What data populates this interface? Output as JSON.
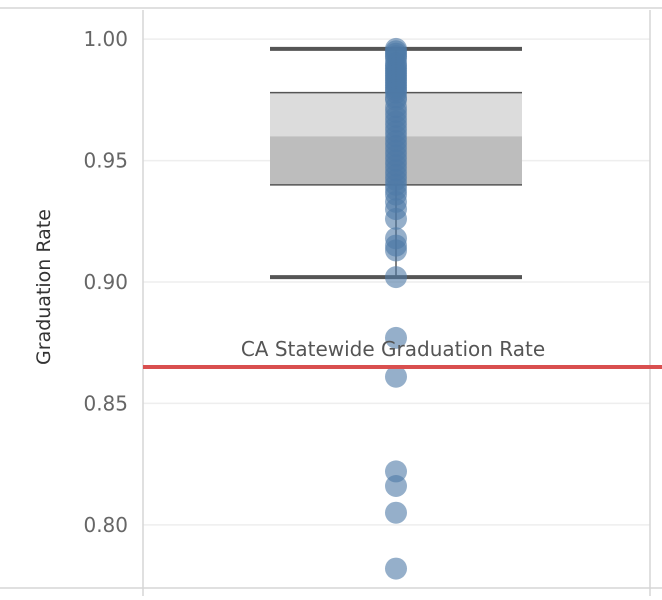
{
  "chart_data": {
    "type": "scatter",
    "subtype": "box-plot-with-jittered-points",
    "ylabel": "Graduation Rate",
    "xlabel": "",
    "ylim": [
      0.774,
      1.012
    ],
    "yticks": [
      0.8,
      0.85,
      0.9,
      0.95,
      1.0
    ],
    "ytick_labels": [
      "0.80",
      "0.85",
      "0.90",
      "0.95",
      "1.00"
    ],
    "grid": true,
    "box": {
      "whisker_low": 0.902,
      "q1": 0.94,
      "median": 0.96,
      "q3": 0.978,
      "whisker_high": 0.996
    },
    "reference_line": {
      "label": "CA Statewide Graduation Rate",
      "value": 0.865
    },
    "points": [
      0.996,
      0.995,
      0.994,
      0.993,
      0.992,
      0.99,
      0.989,
      0.988,
      0.987,
      0.986,
      0.985,
      0.984,
      0.983,
      0.982,
      0.981,
      0.98,
      0.979,
      0.978,
      0.976,
      0.975,
      0.972,
      0.97,
      0.968,
      0.966,
      0.964,
      0.962,
      0.96,
      0.958,
      0.956,
      0.954,
      0.952,
      0.95,
      0.948,
      0.946,
      0.944,
      0.942,
      0.94,
      0.938,
      0.936,
      0.933,
      0.93,
      0.926,
      0.918,
      0.915,
      0.913,
      0.902,
      0.877,
      0.861,
      0.822,
      0.816,
      0.805,
      0.782
    ],
    "colors": {
      "points": "#4e79a7",
      "box_upper": "#dcdcdc",
      "box_lower": "#bdbdbd",
      "whisker": "#555555",
      "reference_line": "#d94f4f",
      "gridline": "#eeeeee",
      "pane_border": "#d6d6d6"
    }
  }
}
